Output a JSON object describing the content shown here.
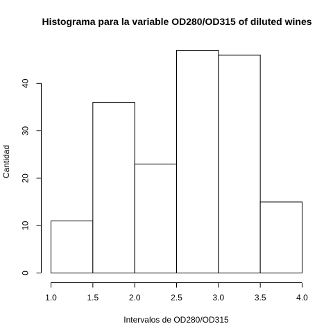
{
  "chart_data": {
    "type": "bar",
    "title": "Histograma para la variable OD280/OD315 of diluted wines",
    "xlabel": "Intervalos de OD280/OD315",
    "ylabel": "Cantidad",
    "bins": [
      {
        "from": 1.0,
        "to": 1.5,
        "count": 11
      },
      {
        "from": 1.5,
        "to": 2.0,
        "count": 36
      },
      {
        "from": 2.0,
        "to": 2.5,
        "count": 23
      },
      {
        "from": 2.5,
        "to": 3.0,
        "count": 47
      },
      {
        "from": 3.0,
        "to": 3.5,
        "count": 46
      },
      {
        "from": 3.5,
        "to": 4.0,
        "count": 15
      }
    ],
    "xlim": [
      1.0,
      4.0
    ],
    "ylim": [
      0,
      47
    ],
    "x_ticks": [
      "1.0",
      "1.5",
      "2.0",
      "2.5",
      "3.0",
      "3.5",
      "4.0"
    ],
    "y_ticks": [
      "0",
      "10",
      "20",
      "30",
      "40"
    ],
    "grid": false
  }
}
